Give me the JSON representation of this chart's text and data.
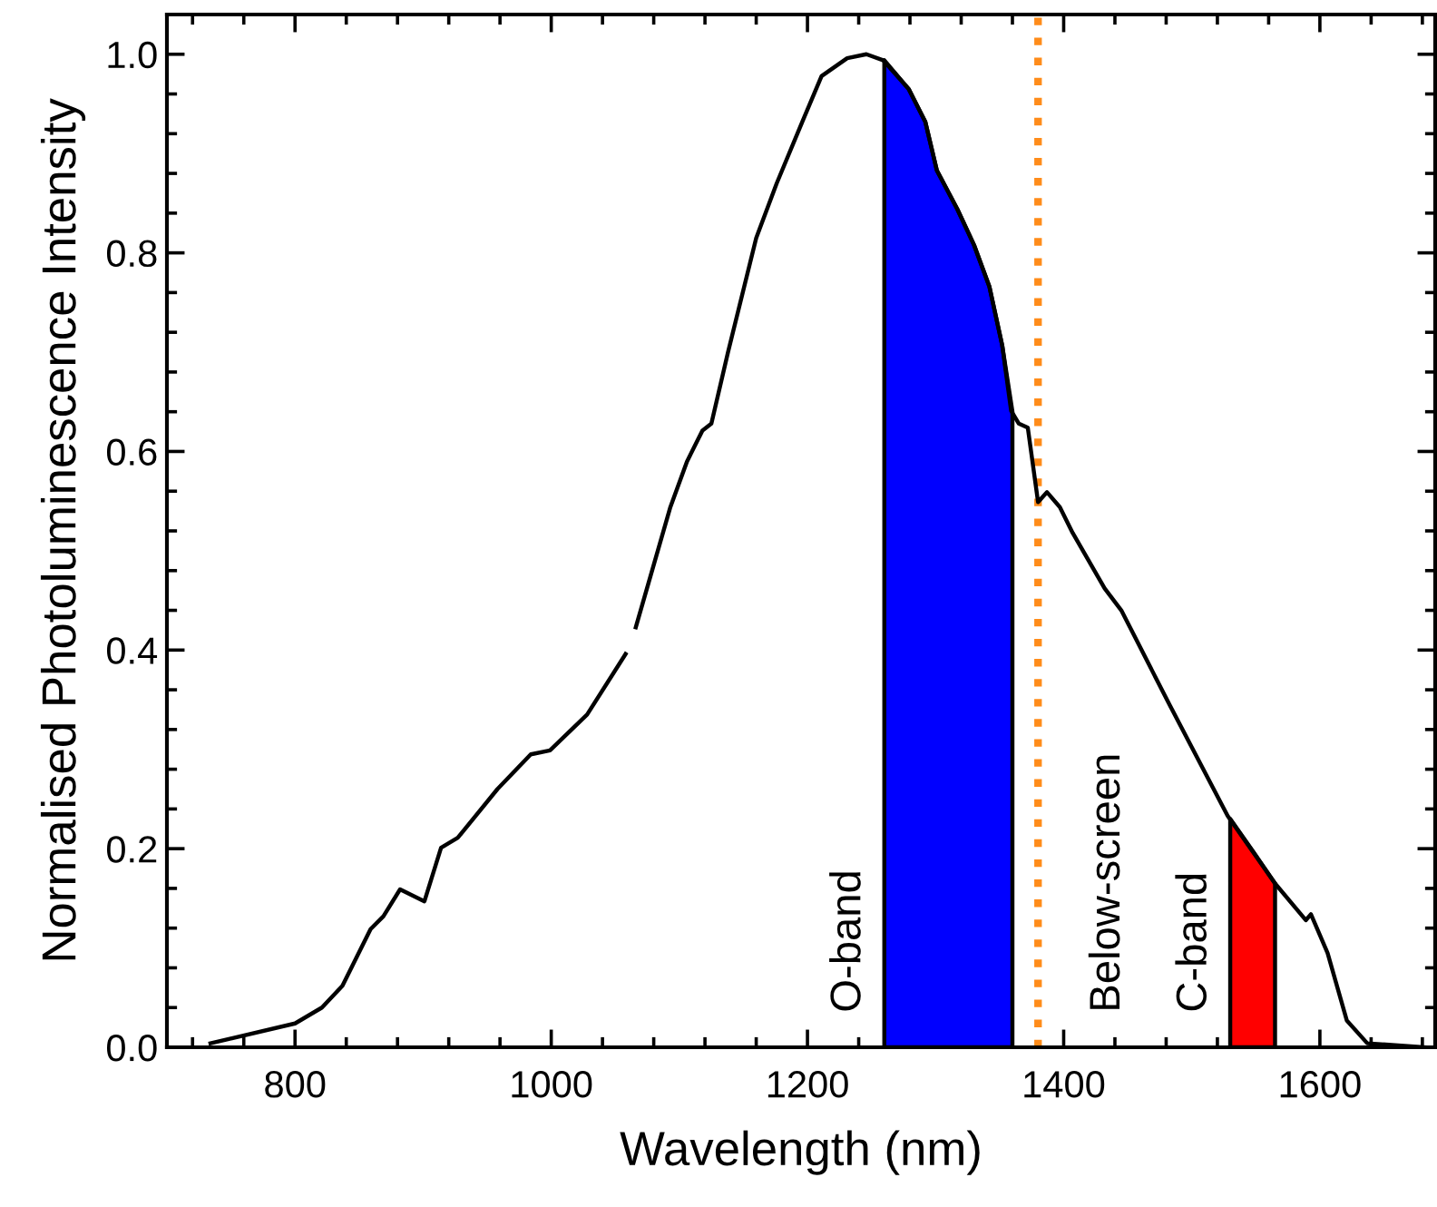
{
  "chart_data": {
    "type": "line",
    "xlabel": "Wavelength (nm)",
    "ylabel": "Normalised Photoluminescence Intensity",
    "xlim": [
      700,
      1690
    ],
    "ylim": [
      0,
      1.04
    ],
    "xticks": [
      800,
      1000,
      1200,
      1400,
      1600
    ],
    "yticks": [
      {
        "value": 0,
        "label": "0.0"
      },
      {
        "value": 0.2,
        "label": "0.2"
      },
      {
        "value": 0.4,
        "label": "0.4"
      },
      {
        "value": 0.6,
        "label": "0.6"
      },
      {
        "value": 0.8,
        "label": "0.8"
      },
      {
        "value": 1.0,
        "label": "1.0"
      }
    ],
    "grid": false,
    "legend": false,
    "marker": "none",
    "line_style": "solid",
    "series": [
      {
        "color": "#000000",
        "x": [
          734,
          800,
          821,
          837,
          859,
          869,
          882,
          901,
          914,
          927,
          958,
          984,
          999,
          1028,
          1058,
          1062,
          1066,
          1093,
          1106,
          1118,
          1125,
          1138,
          1160,
          1176,
          1196,
          1211,
          1231,
          1246,
          1259,
          1279,
          1292,
          1301,
          1317,
          1330,
          1342,
          1352,
          1359,
          1365,
          1372,
          1380,
          1387,
          1397,
          1407,
          1432,
          1445,
          1483,
          1528,
          1565,
          1589,
          1593,
          1606,
          1621,
          1637,
          1682
        ],
        "values": [
          0.004,
          0.024,
          0.04,
          0.062,
          0.119,
          0.132,
          0.159,
          0.147,
          0.201,
          0.211,
          0.26,
          0.295,
          0.299,
          0.335,
          0.396,
          null,
          0.423,
          0.544,
          0.59,
          0.621,
          0.628,
          0.7,
          0.815,
          0.87,
          0.932,
          0.978,
          0.996,
          1.0,
          0.994,
          0.965,
          0.932,
          0.883,
          0.844,
          0.808,
          0.766,
          0.707,
          0.641,
          0.628,
          0.624,
          0.549,
          0.559,
          0.544,
          0.518,
          0.462,
          0.44,
          0.344,
          0.233,
          0.165,
          0.128,
          0.134,
          0.095,
          0.027,
          0.004,
          0.0
        ]
      },
      {
        "type": "area",
        "name": "O-band",
        "color": "#0000ff",
        "x": [
          1260,
          1279,
          1292,
          1301,
          1317,
          1330,
          1342,
          1352,
          1360
        ],
        "values": [
          0.994,
          0.965,
          0.932,
          0.883,
          0.844,
          0.808,
          0.766,
          0.707,
          0.64
        ]
      },
      {
        "type": "area",
        "name": "C-band",
        "color": "#ff0000",
        "x": [
          1530,
          1548,
          1565
        ],
        "values": [
          0.23,
          0.197,
          0.165
        ]
      }
    ],
    "ref_lines": [
      {
        "axis": "x",
        "value": 1380,
        "label": "Below-screen",
        "color": "#ff8c1a",
        "line_style": "dotted"
      }
    ]
  }
}
